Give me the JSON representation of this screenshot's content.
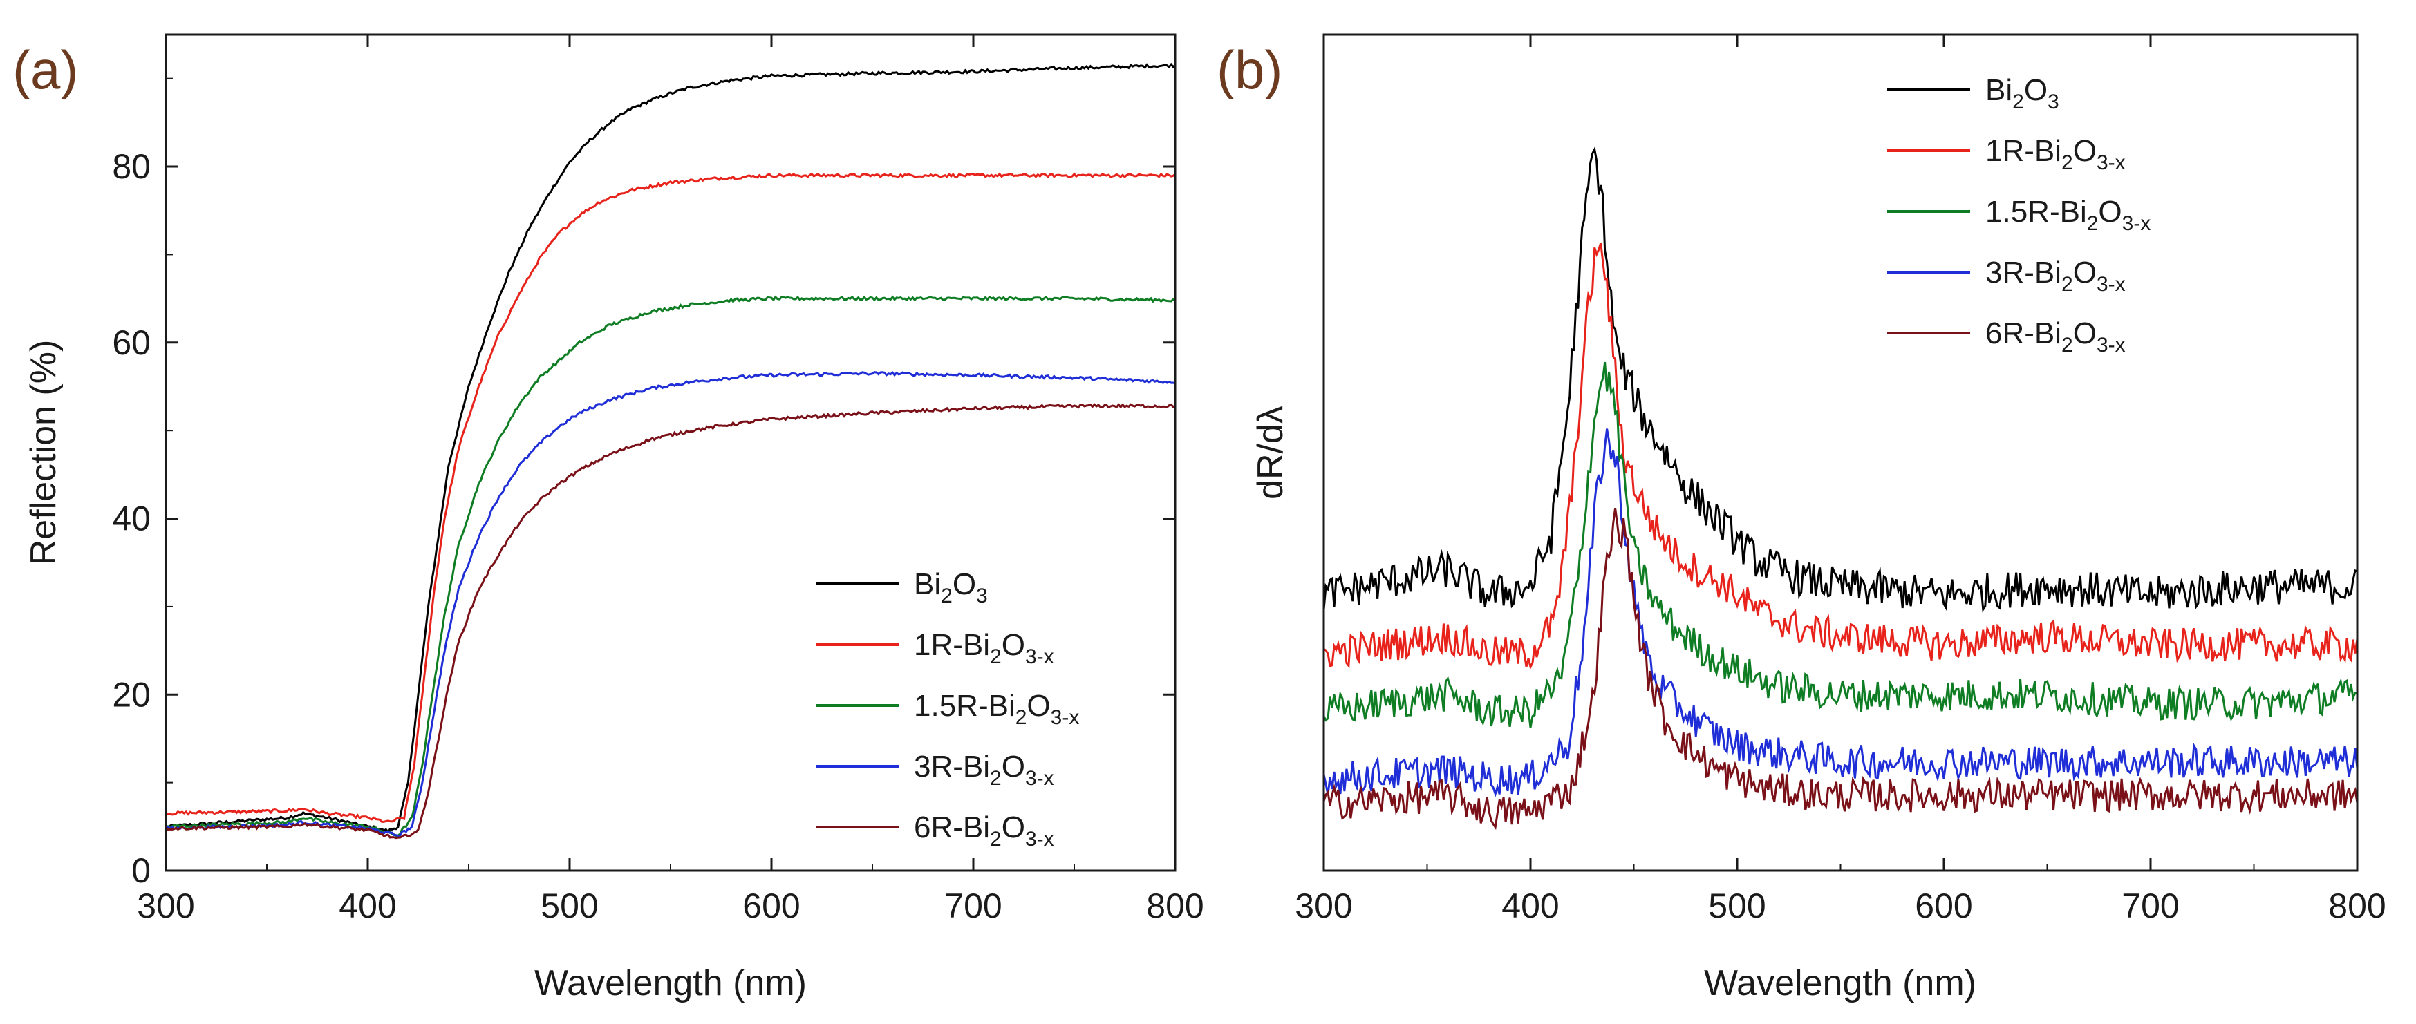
{
  "chart_data": [
    {
      "panel": "(a)",
      "type": "line",
      "title": "",
      "xlabel": "Wavelength (nm)",
      "ylabel": "Reflection (%)",
      "xlim": [
        300,
        800
      ],
      "ylim": [
        0,
        95
      ],
      "xticks": [
        300,
        400,
        500,
        600,
        700,
        800
      ],
      "yticks": [
        0,
        20,
        40,
        60,
        80
      ],
      "grid": false,
      "legend_position": "bottom-right",
      "series": [
        {
          "name": "Bi2O3",
          "base": "Bi",
          "sub1": "2",
          "mid": "O",
          "sub2": "3",
          "color": "#000000",
          "x": [
            300,
            360,
            368,
            380,
            400,
            410,
            415,
            420,
            425,
            430,
            435,
            440,
            450,
            460,
            470,
            480,
            490,
            500,
            510,
            520,
            530,
            540,
            550,
            560,
            580,
            600,
            650,
            700,
            750,
            800
          ],
          "y": [
            5,
            6,
            6.5,
            6,
            5,
            4.5,
            5,
            10,
            20,
            30,
            38,
            46,
            55,
            62,
            68,
            73,
            77,
            80.5,
            83,
            85,
            86.5,
            87.5,
            88.3,
            89,
            89.8,
            90.3,
            90.6,
            90.8,
            91.2,
            91.5
          ]
        },
        {
          "name": "1R-Bi2O3-x",
          "base": "1R-Bi",
          "sub1": "2",
          "mid": "O",
          "sub2": "3-x",
          "color": "#e8231b",
          "x": [
            300,
            360,
            368,
            380,
            400,
            410,
            418,
            423,
            428,
            433,
            438,
            445,
            455,
            465,
            475,
            485,
            495,
            505,
            515,
            530,
            550,
            575,
            600,
            650,
            700,
            750,
            800
          ],
          "y": [
            6.5,
            6.8,
            7,
            6.5,
            6,
            5.5,
            6,
            12,
            22,
            32,
            40,
            48,
            55,
            61,
            65.5,
            69.5,
            72.5,
            74.5,
            76,
            77.3,
            78.2,
            78.7,
            79,
            79,
            79,
            79,
            79
          ]
        },
        {
          "name": "1.5R-Bi2O3-x",
          "base": "1.5R-Bi",
          "sub1": "2",
          "mid": "O",
          "sub2": "3-x",
          "color": "#0e7d23",
          "x": [
            300,
            360,
            368,
            380,
            400,
            415,
            422,
            427,
            432,
            438,
            445,
            455,
            465,
            475,
            485,
            495,
            505,
            520,
            540,
            560,
            580,
            600,
            650,
            700,
            750,
            800
          ],
          "y": [
            5,
            5.5,
            6,
            5.5,
            5,
            4,
            6,
            12,
            20,
            29,
            37,
            44,
            49,
            53,
            56,
            58,
            60,
            62,
            63.5,
            64.3,
            64.8,
            65,
            65,
            65,
            65,
            64.8
          ]
        },
        {
          "name": "3R-Bi2O3-x",
          "base": "3R-Bi",
          "sub1": "2",
          "mid": "O",
          "sub2": "3-x",
          "color": "#1f2ed6",
          "x": [
            300,
            360,
            368,
            380,
            400,
            415,
            422,
            427,
            432,
            438,
            445,
            455,
            465,
            475,
            485,
            495,
            505,
            520,
            540,
            560,
            580,
            600,
            650,
            700,
            750,
            800
          ],
          "y": [
            4.8,
            5.2,
            5.5,
            5.2,
            4.8,
            4,
            5,
            10,
            17,
            25,
            32,
            38,
            42.5,
            46,
            48.5,
            50.5,
            52,
            53.5,
            54.8,
            55.5,
            56,
            56.3,
            56.5,
            56.3,
            56,
            55.5
          ]
        },
        {
          "name": "6R-Bi2O3-x",
          "base": "6R-Bi",
          "sub1": "2",
          "mid": "O",
          "sub2": "3-x",
          "color": "#7a1018",
          "x": [
            300,
            360,
            368,
            380,
            400,
            415,
            425,
            430,
            435,
            440,
            445,
            455,
            465,
            475,
            485,
            495,
            505,
            520,
            540,
            560,
            580,
            600,
            650,
            700,
            750,
            800
          ],
          "y": [
            4.8,
            5,
            5.3,
            5,
            4.6,
            3.6,
            4.5,
            9,
            15,
            21,
            26,
            32,
            36,
            39.5,
            42,
            44,
            45.5,
            47.3,
            49,
            50,
            50.7,
            51.3,
            52,
            52.5,
            52.8,
            52.8
          ]
        }
      ]
    },
    {
      "panel": "(b)",
      "type": "line",
      "title": "",
      "xlabel": "Wavelength (nm)",
      "ylabel": "dR/dλ",
      "xlim": [
        300,
        800
      ],
      "ylim": [
        0,
        100
      ],
      "xticks": [
        300,
        400,
        500,
        600,
        700,
        800
      ],
      "yticks": [],
      "grid": false,
      "legend_position": "top-right",
      "series": [
        {
          "name": "Bi2O3",
          "base": "Bi",
          "sub1": "2",
          "mid": "O",
          "sub2": "3",
          "color": "#000000",
          "noise": 2.2,
          "x": [
            300,
            360,
            380,
            400,
            410,
            418,
            425,
            430,
            434,
            438,
            442,
            448,
            455,
            465,
            475,
            490,
            510,
            530,
            550,
            600,
            650,
            700,
            750,
            800
          ],
          "y": [
            33,
            36,
            33,
            34,
            40,
            55,
            75,
            86,
            82,
            70,
            62,
            58,
            54,
            50,
            46,
            42,
            37,
            35,
            34,
            33,
            34,
            33,
            34,
            34
          ]
        },
        {
          "name": "1R-Bi2O3-x",
          "base": "1R-Bi",
          "sub1": "2",
          "mid": "O",
          "sub2": "3-x",
          "color": "#e8231b",
          "noise": 2.0,
          "x": [
            300,
            360,
            380,
            400,
            412,
            420,
            427,
            432,
            436,
            440,
            445,
            452,
            460,
            470,
            480,
            495,
            510,
            530,
            550,
            600,
            650,
            700,
            750,
            800
          ],
          "y": [
            26,
            28,
            26,
            26,
            30,
            45,
            65,
            75,
            72,
            62,
            50,
            45,
            41,
            38,
            36,
            34,
            31,
            29,
            28,
            27,
            28,
            27,
            27,
            27
          ]
        },
        {
          "name": "1.5R-Bi2O3-x",
          "base": "1.5R-Bi",
          "sub1": "2",
          "mid": "O",
          "sub2": "3-x",
          "color": "#0e7d23",
          "noise": 2.0,
          "x": [
            300,
            360,
            380,
            400,
            415,
            423,
            430,
            435,
            440,
            445,
            450,
            460,
            470,
            485,
            500,
            520,
            550,
            600,
            650,
            700,
            750,
            800
          ],
          "y": [
            19,
            21,
            19,
            19,
            23,
            35,
            52,
            60,
            57,
            47,
            38,
            32,
            29,
            26,
            24,
            22,
            21,
            21,
            21,
            20,
            20,
            21
          ]
        },
        {
          "name": "3R-Bi2O3-x",
          "base": "3R-Bi",
          "sub1": "2",
          "mid": "O",
          "sub2": "3-x",
          "color": "#1f2ed6",
          "noise": 2.0,
          "x": [
            300,
            360,
            380,
            400,
            418,
            426,
            432,
            437,
            442,
            447,
            452,
            460,
            470,
            485,
            500,
            520,
            550,
            600,
            650,
            700,
            750,
            800
          ],
          "y": [
            11,
            12,
            11,
            11,
            15,
            28,
            45,
            52,
            48,
            38,
            30,
            23,
            20,
            17,
            15,
            14,
            13,
            13,
            13,
            13,
            13,
            13
          ]
        },
        {
          "name": "6R-Bi2O3-x",
          "base": "6R-Bi",
          "sub1": "2",
          "mid": "O",
          "sub2": "3-x",
          "color": "#7a1018",
          "noise": 2.0,
          "x": [
            300,
            360,
            380,
            400,
            420,
            430,
            436,
            441,
            446,
            451,
            456,
            465,
            475,
            490,
            510,
            540,
            600,
            650,
            700,
            750,
            800
          ],
          "y": [
            8,
            9,
            7,
            7,
            10,
            20,
            35,
            42,
            40,
            31,
            24,
            18,
            15,
            12,
            10,
            9,
            9,
            9,
            9,
            9,
            9
          ]
        }
      ]
    }
  ]
}
